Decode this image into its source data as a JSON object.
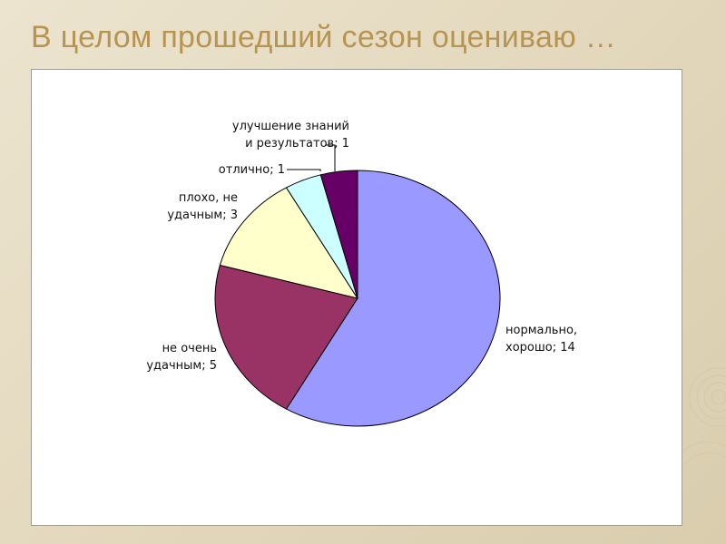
{
  "slide": {
    "title": "В целом прошедший сезон оцениваю …"
  },
  "colors": {
    "background": "#e6dcc4",
    "title": "#b89452"
  },
  "chart_data": {
    "type": "pie",
    "title": "",
    "slices": [
      {
        "name": "нормально, хорошо",
        "label_lines": [
          "нормально,",
          "хорошо; 14"
        ],
        "value": 14,
        "color": "#9999ff"
      },
      {
        "name": "не очень удачным",
        "label_lines": [
          "не очень",
          "удачным; 5"
        ],
        "value": 5,
        "color": "#993366"
      },
      {
        "name": "плохо, не удачным",
        "label_lines": [
          "плохо, не",
          "удачным; 3"
        ],
        "value": 3,
        "color": "#ffffcc"
      },
      {
        "name": "отлично",
        "label_lines": [
          "отлично; 1"
        ],
        "value": 1,
        "color": "#ccffff"
      },
      {
        "name": "улучшение знаний и результатов",
        "label_lines": [
          "улучшение знаний",
          "и результатов; 1"
        ],
        "value": 1,
        "color": "#660066"
      }
    ],
    "legend": "none"
  }
}
